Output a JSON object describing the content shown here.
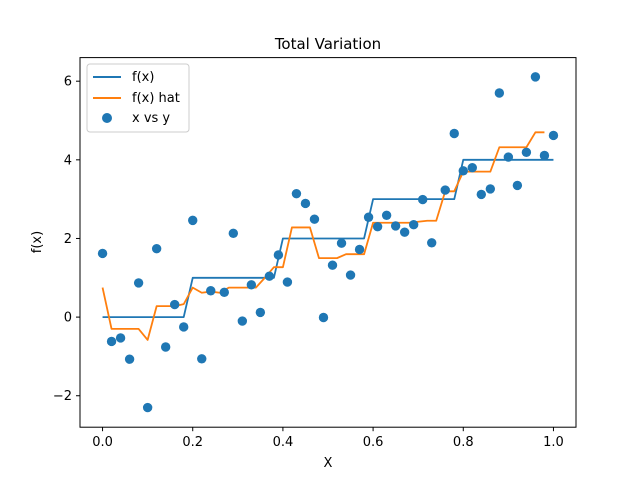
{
  "chart_data": {
    "type": "line",
    "title": "Total Variation",
    "xlabel": "X",
    "ylabel": "f(x)",
    "xlim": [
      -0.05,
      1.05
    ],
    "ylim": [
      -2.8,
      6.6
    ],
    "xticks": [
      0.0,
      0.2,
      0.4,
      0.6,
      0.8,
      1.0
    ],
    "xtick_labels": [
      "0.0",
      "0.2",
      "0.4",
      "0.6",
      "0.8",
      "1.0"
    ],
    "yticks": [
      -2,
      0,
      2,
      4,
      6
    ],
    "ytick_labels": [
      "−2",
      "0",
      "2",
      "4",
      "6"
    ],
    "grid": false,
    "legend_position": "top-left",
    "colors": {
      "f": "#1f77b4",
      "fhat": "#ff7f0e",
      "scatter": "#1f77b4"
    },
    "legend": [
      "f(x)",
      "f(x) hat",
      "x vs y"
    ],
    "series": [
      {
        "name": "f(x)",
        "style": "line",
        "x": [
          0.0,
          0.18,
          0.2,
          0.38,
          0.4,
          0.58,
          0.6,
          0.78,
          0.8,
          1.0
        ],
        "y": [
          0,
          0,
          1,
          1,
          2,
          2,
          3,
          3,
          4,
          4
        ]
      },
      {
        "name": "f(x) hat",
        "style": "line",
        "x": [
          0.0,
          0.02,
          0.08,
          0.1,
          0.12,
          0.16,
          0.18,
          0.2,
          0.22,
          0.24,
          0.26,
          0.28,
          0.34,
          0.36,
          0.38,
          0.4,
          0.42,
          0.46,
          0.48,
          0.52,
          0.54,
          0.58,
          0.6,
          0.64,
          0.68,
          0.72,
          0.74,
          0.76,
          0.78,
          0.8,
          0.86,
          0.88,
          0.94,
          0.96,
          0.98
        ],
        "y": [
          0.75,
          -0.3,
          -0.3,
          -0.58,
          0.28,
          0.28,
          0.33,
          0.75,
          0.62,
          0.65,
          0.62,
          0.75,
          0.75,
          1.0,
          1.27,
          1.27,
          2.28,
          2.28,
          1.5,
          1.5,
          1.6,
          1.6,
          2.4,
          2.4,
          2.4,
          2.45,
          2.45,
          3.2,
          3.2,
          3.7,
          3.7,
          4.32,
          4.32,
          4.7,
          4.7
        ]
      },
      {
        "name": "x vs y",
        "style": "scatter",
        "x": [
          0.0,
          0.02,
          0.04,
          0.06,
          0.08,
          0.1,
          0.12,
          0.14,
          0.16,
          0.18,
          0.2,
          0.22,
          0.24,
          0.27,
          0.29,
          0.31,
          0.33,
          0.35,
          0.37,
          0.39,
          0.41,
          0.43,
          0.45,
          0.47,
          0.49,
          0.51,
          0.53,
          0.55,
          0.57,
          0.59,
          0.61,
          0.63,
          0.65,
          0.67,
          0.69,
          0.71,
          0.73,
          0.76,
          0.78,
          0.8,
          0.82,
          0.84,
          0.86,
          0.88,
          0.9,
          0.92,
          0.94,
          0.96,
          0.98,
          1.0
        ],
        "y": [
          1.62,
          -0.62,
          -0.53,
          -1.07,
          0.87,
          -2.3,
          1.74,
          -0.76,
          0.32,
          -0.25,
          2.46,
          -1.06,
          0.67,
          0.63,
          2.13,
          -0.1,
          0.82,
          0.12,
          1.04,
          1.58,
          0.89,
          3.14,
          2.89,
          2.49,
          -0.01,
          1.32,
          1.88,
          1.07,
          1.72,
          2.54,
          2.3,
          2.59,
          2.32,
          2.16,
          2.35,
          2.99,
          1.89,
          3.23,
          4.67,
          3.72,
          3.8,
          3.12,
          3.26,
          5.7,
          4.07,
          3.35,
          4.19,
          6.11,
          4.11,
          4.62
        ]
      }
    ]
  }
}
